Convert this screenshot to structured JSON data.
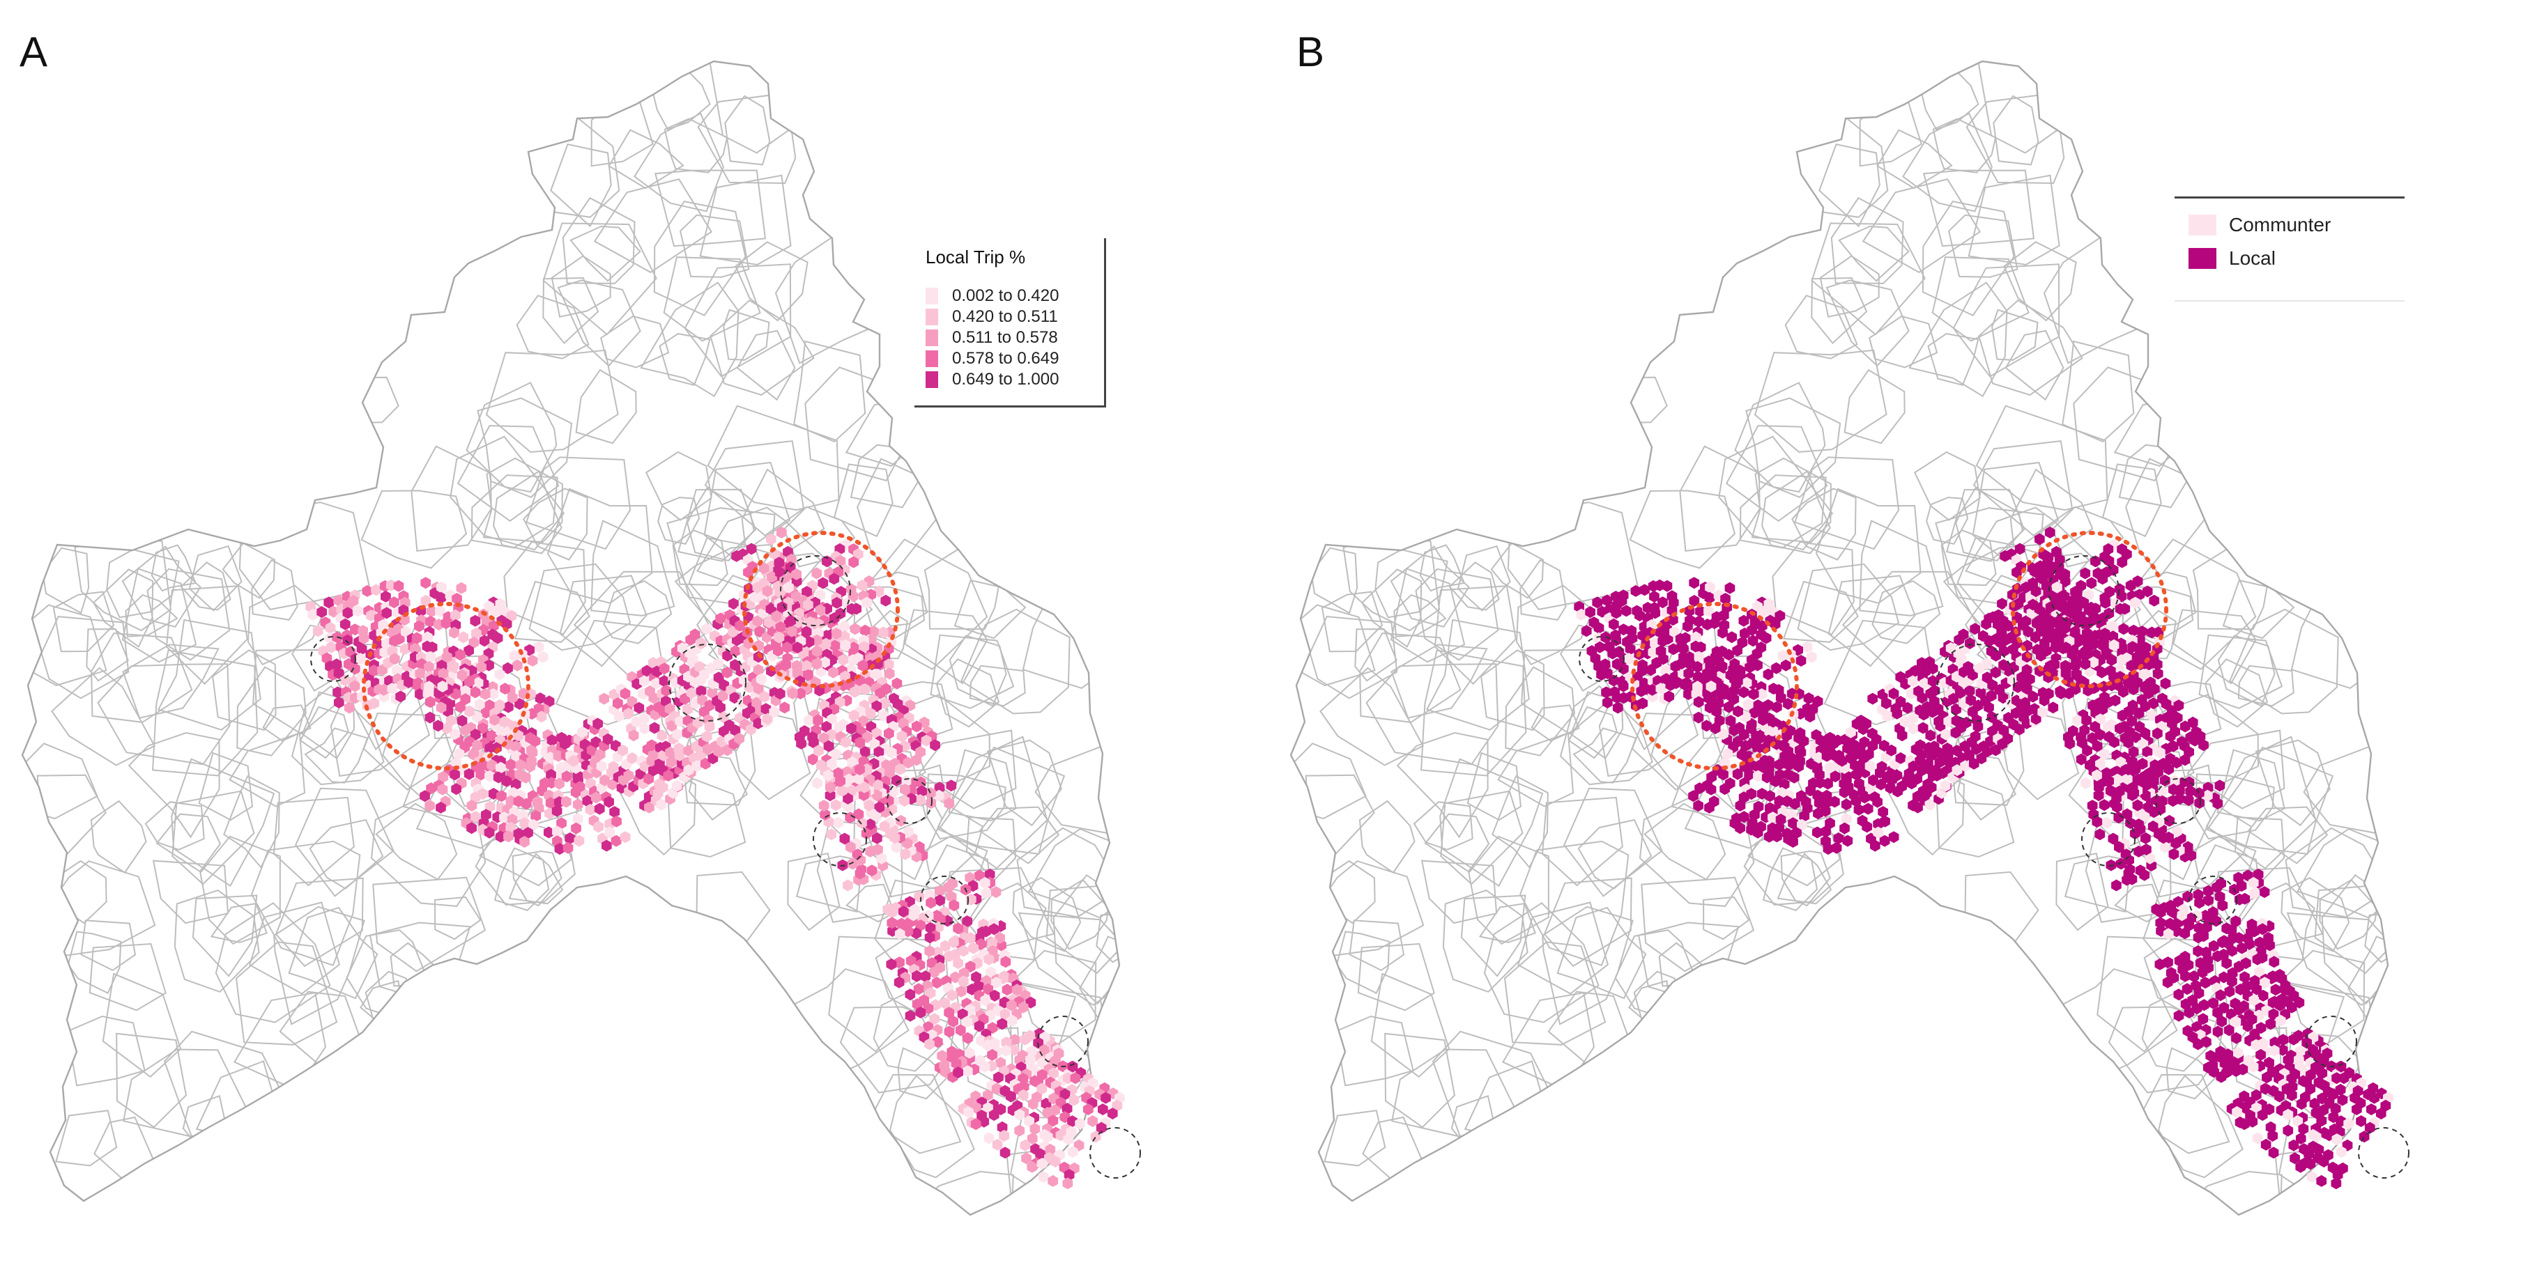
{
  "panels": [
    {
      "label": "A"
    },
    {
      "label": "B"
    }
  ],
  "legend_a": {
    "title": "Local Trip %",
    "classes": [
      {
        "label": "0.002 to 0.420",
        "color": "#fde4ec"
      },
      {
        "label": "0.420 to 0.511",
        "color": "#fbc4d6"
      },
      {
        "label": "0.511 to 0.578",
        "color": "#f79ec0"
      },
      {
        "label": "0.578 to 0.649",
        "color": "#ef6aa6"
      },
      {
        "label": "0.649 to 1.000",
        "color": "#cf2a8c"
      }
    ]
  },
  "legend_b": {
    "classes": [
      {
        "label": "Communter",
        "color": "#fde4ec"
      },
      {
        "label": "Local",
        "color": "#b5067e"
      }
    ]
  },
  "colors": {
    "boundary": "#bdbdbd",
    "highlight_circle": "#f0552a",
    "minor_circle": "#333333"
  }
}
